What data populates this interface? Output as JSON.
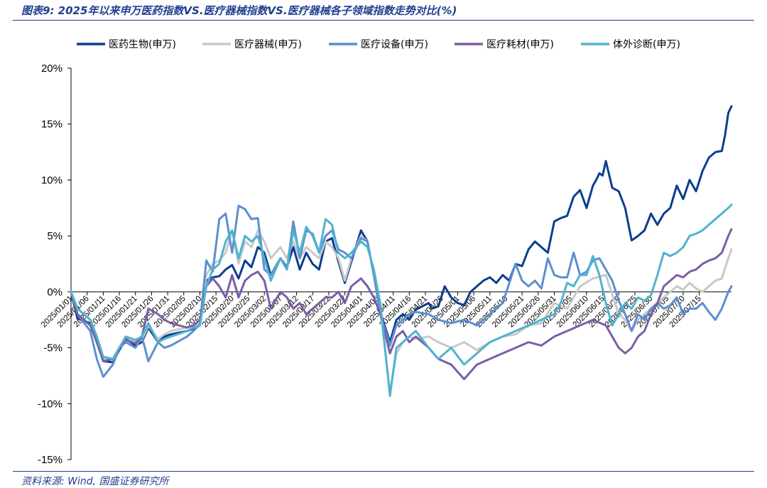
{
  "header": {
    "figure_title": "图表9: 2025年以来申万医药指数VS.医疗器械指数VS.医疗器械各子领域指数走势对比(%)"
  },
  "footer": {
    "source": "资料来源: Wind, 国盛证券研究所"
  },
  "chart_data": {
    "type": "line",
    "title": "",
    "xlabel": "",
    "ylabel": "",
    "ylim": [
      -15,
      20
    ],
    "y_ticks": [
      -15,
      -10,
      -5,
      0,
      5,
      10,
      15,
      20
    ],
    "y_tick_labels": [
      "-15%",
      "-10%",
      "-5%",
      "0%",
      "5%",
      "10%",
      "15%",
      "20%"
    ],
    "x_tick_labels": [
      "2025/01/01",
      "2025/01/06",
      "2025/01/11",
      "2025/01/16",
      "2025/01/21",
      "2025/01/26",
      "2025/01/31",
      "2025/02/05",
      "2025/02/10",
      "2025/02/15",
      "2025/02/20",
      "2025/02/25",
      "2025/03/02",
      "2025/03/07",
      "2025/03/12",
      "2025/03/17",
      "2025/03/22",
      "2025/03/27",
      "2025/04/01",
      "2025/04/06",
      "2025/04/11",
      "2025/04/16",
      "2025/04/21",
      "2025/04/26",
      "2025/05/01",
      "2025/05/06",
      "2025/05/11",
      "2025/05/16",
      "2025/05/21",
      "2025/05/26",
      "2025/05/31",
      "2025/06/05",
      "2025/06/10",
      "2025/06/15",
      "2025/06/20",
      "2025/06/25",
      "2025/06/30",
      "2025/07/05",
      "2025/07/10",
      "2025/07/15"
    ],
    "x_range": [
      0,
      205
    ],
    "legend_position": "top",
    "grid": false,
    "series": [
      {
        "name": "医药生物(申万)",
        "color": "#0e3d8f",
        "x": [
          0,
          2,
          6,
          8,
          10,
          13,
          15,
          17,
          20,
          22,
          24,
          27,
          29,
          31,
          36,
          38,
          40,
          42,
          44,
          46,
          48,
          50,
          52,
          54,
          56,
          58,
          60,
          62,
          65,
          67,
          69,
          71,
          73,
          75,
          77,
          79,
          81,
          83,
          85,
          87,
          90,
          92,
          94,
          96,
          99,
          101,
          103,
          105,
          107,
          111,
          112,
          114,
          116,
          118,
          120,
          122,
          124,
          126,
          128,
          130,
          132,
          134,
          136,
          138,
          140,
          142,
          144,
          146,
          148,
          150,
          152,
          154,
          156,
          158,
          160,
          162,
          163,
          164,
          165,
          166,
          168,
          170,
          172,
          174,
          176,
          178,
          180,
          182,
          184,
          186,
          188,
          190,
          192,
          194,
          196,
          198,
          200,
          202,
          203,
          204,
          205
        ],
        "y": [
          0,
          -2.4,
          -2.8,
          -4.5,
          -6.2,
          -6.3,
          -5.2,
          -4.2,
          -4.8,
          -4.5,
          -3.2,
          -4.5,
          -4.0,
          -3.8,
          -3.5,
          -3.3,
          -3.0,
          1.0,
          1.3,
          1.4,
          2.0,
          2.4,
          1.2,
          2.8,
          2.2,
          4.0,
          3.5,
          1.5,
          3.0,
          2.2,
          4.0,
          2.0,
          3.5,
          2.5,
          2.0,
          4.5,
          4.8,
          2.7,
          0.8,
          2.7,
          5.5,
          4.5,
          1.5,
          -1.8,
          -4.5,
          -2.5,
          -2.0,
          -2.5,
          -1.6,
          -1.0,
          -1.5,
          -1.3,
          0.5,
          -0.5,
          -1.0,
          -1.2,
          0.0,
          0.5,
          1.0,
          1.3,
          0.8,
          1.5,
          1.0,
          2.5,
          2.3,
          3.8,
          4.5,
          4.0,
          3.5,
          6.3,
          6.6,
          6.8,
          8.5,
          9.1,
          7.5,
          9.5,
          10.0,
          10.6,
          10.4,
          11.7,
          9.3,
          9.0,
          7.5,
          4.6,
          5.0,
          5.5,
          7.0,
          6.0,
          7.0,
          7.5,
          9.5,
          8.3,
          10.0,
          9.0,
          10.8,
          12.0,
          12.5,
          12.6,
          14.0,
          16.0,
          16.6
        ]
      },
      {
        "name": "医疗器械(申万)",
        "color": "#c8c8c8",
        "x": [
          0,
          2,
          6,
          8,
          10,
          13,
          15,
          17,
          20,
          22,
          24,
          27,
          29,
          31,
          36,
          38,
          40,
          42,
          44,
          46,
          48,
          50,
          52,
          54,
          56,
          58,
          60,
          62,
          65,
          67,
          69,
          71,
          73,
          75,
          77,
          79,
          81,
          83,
          85,
          87,
          90,
          92,
          94,
          96,
          99,
          101,
          103,
          105,
          107,
          111,
          114,
          118,
          122,
          126,
          130,
          134,
          138,
          142,
          146,
          150,
          154,
          158,
          162,
          166,
          170,
          172,
          174,
          176,
          178,
          180,
          182,
          184,
          186,
          188,
          190,
          192,
          194,
          196,
          198,
          200,
          202,
          204,
          205
        ],
        "y": [
          0,
          -1.5,
          -2.5,
          -4.0,
          -6.0,
          -6.0,
          -5.0,
          -4.0,
          -4.5,
          -4.3,
          -3.0,
          -4.2,
          -3.8,
          -3.5,
          -3.2,
          -3.0,
          -2.8,
          1.5,
          2.5,
          2.8,
          3.5,
          5.5,
          2.5,
          4.5,
          4.0,
          5.5,
          4.5,
          3.0,
          4.0,
          3.0,
          4.5,
          3.0,
          4.0,
          3.5,
          3.0,
          4.5,
          4.0,
          3.0,
          1.0,
          3.0,
          5.0,
          4.5,
          1.5,
          -1.5,
          -9.0,
          -5.5,
          -4.5,
          -4.0,
          -4.2,
          -4.0,
          -4.5,
          -5.0,
          -4.5,
          -5.2,
          -4.5,
          -4.0,
          -3.8,
          -3.0,
          -2.8,
          -1.0,
          -1.5,
          0.5,
          1.2,
          1.5,
          -2.0,
          -2.5,
          -3.5,
          -2.5,
          -2.0,
          -1.5,
          -1.0,
          -0.5,
          0.0,
          0.5,
          0.2,
          0.8,
          0.3,
          0.0,
          0.5,
          1.0,
          1.2,
          3.0,
          3.8
        ]
      },
      {
        "name": "医疗设备(申万)",
        "color": "#5b8fd1",
        "x": [
          0,
          2,
          6,
          8,
          10,
          13,
          15,
          17,
          20,
          22,
          24,
          27,
          29,
          31,
          36,
          38,
          40,
          42,
          44,
          46,
          48,
          50,
          52,
          54,
          56,
          58,
          60,
          62,
          65,
          67,
          69,
          71,
          73,
          75,
          77,
          79,
          81,
          83,
          85,
          87,
          90,
          92,
          94,
          96,
          99,
          101,
          103,
          105,
          107,
          111,
          114,
          118,
          122,
          126,
          130,
          134,
          138,
          140,
          142,
          144,
          146,
          148,
          150,
          152,
          154,
          156,
          158,
          160,
          162,
          164,
          166,
          168,
          170,
          172,
          174,
          176,
          178,
          180,
          182,
          184,
          186,
          188,
          190,
          192,
          194,
          196,
          198,
          200,
          202,
          204,
          205
        ],
        "y": [
          0,
          -2.0,
          -3.5,
          -6.0,
          -7.6,
          -6.5,
          -5.0,
          -4.5,
          -5.0,
          -4.0,
          -6.2,
          -4.5,
          -5.0,
          -4.8,
          -4.0,
          -3.5,
          -2.9,
          2.8,
          1.8,
          6.5,
          7.0,
          3.5,
          7.7,
          7.4,
          6.5,
          6.6,
          2.0,
          1.5,
          3.0,
          2.0,
          6.3,
          3.0,
          5.5,
          5.2,
          3.5,
          5.0,
          5.5,
          3.8,
          3.5,
          3.0,
          4.8,
          4.5,
          1.5,
          -2.0,
          -4.8,
          -3.0,
          -2.5,
          -2.0,
          -1.8,
          -2.0,
          -2.5,
          -2.8,
          -2.5,
          -3.0,
          -2.0,
          -1.0,
          2.5,
          1.0,
          0.5,
          1.0,
          0.3,
          3.0,
          1.5,
          1.3,
          1.3,
          3.5,
          1.5,
          1.8,
          2.8,
          3.0,
          2.0,
          1.0,
          -0.8,
          -2.0,
          -3.5,
          -2.0,
          -2.5,
          -1.5,
          -1.0,
          -1.5,
          -1.2,
          -0.5,
          -2.0,
          -1.5,
          -1.5,
          -1.0,
          -1.8,
          -2.5,
          -1.5,
          0.0,
          0.5
        ]
      },
      {
        "name": "医疗耗材(申万)",
        "color": "#7b5ea7",
        "x": [
          0,
          2,
          6,
          8,
          10,
          13,
          15,
          17,
          20,
          22,
          24,
          27,
          29,
          31,
          36,
          38,
          40,
          42,
          44,
          46,
          48,
          50,
          52,
          54,
          56,
          58,
          60,
          62,
          65,
          67,
          69,
          71,
          73,
          75,
          77,
          79,
          81,
          83,
          85,
          87,
          90,
          92,
          94,
          96,
          99,
          101,
          103,
          105,
          107,
          111,
          114,
          118,
          122,
          126,
          130,
          134,
          138,
          142,
          146,
          150,
          154,
          158,
          162,
          166,
          170,
          172,
          174,
          176,
          178,
          180,
          182,
          184,
          186,
          188,
          190,
          192,
          194,
          196,
          198,
          200,
          202,
          204,
          205
        ],
        "y": [
          0,
          -2.0,
          -3.0,
          -4.5,
          -6.2,
          -6.0,
          -5.0,
          -4.3,
          -4.6,
          -4.0,
          -1.5,
          -2.0,
          -2.5,
          -2.8,
          -3.2,
          -3.0,
          -2.5,
          0.5,
          1.2,
          0.5,
          -0.5,
          1.5,
          -0.5,
          1.0,
          1.5,
          1.8,
          1.0,
          -1.5,
          0.0,
          -0.5,
          -1.5,
          -1.0,
          -2.0,
          -1.5,
          -1.0,
          -0.5,
          -0.5,
          0.0,
          -1.0,
          0.5,
          1.2,
          0.5,
          -0.5,
          -2.0,
          -5.5,
          -4.0,
          -3.5,
          -4.5,
          -4.0,
          -5.0,
          -6.0,
          -6.5,
          -7.8,
          -6.5,
          -6.0,
          -5.5,
          -5.0,
          -4.5,
          -4.8,
          -4.0,
          -3.5,
          -3.0,
          -2.5,
          -3.0,
          -5.0,
          -5.5,
          -5.0,
          -4.0,
          -3.5,
          -2.0,
          -1.0,
          0.5,
          1.0,
          1.5,
          1.3,
          1.8,
          2.0,
          2.5,
          2.8,
          3.0,
          3.5,
          5.0,
          5.6
        ]
      },
      {
        "name": "体外诊断(申万)",
        "color": "#4fb3cf",
        "x": [
          0,
          2,
          6,
          8,
          10,
          13,
          15,
          17,
          20,
          22,
          24,
          27,
          29,
          31,
          36,
          38,
          40,
          42,
          44,
          46,
          48,
          50,
          52,
          54,
          56,
          58,
          60,
          62,
          65,
          67,
          69,
          71,
          73,
          75,
          77,
          79,
          81,
          83,
          85,
          87,
          90,
          92,
          94,
          96,
          99,
          101,
          103,
          105,
          107,
          111,
          114,
          118,
          122,
          126,
          130,
          134,
          138,
          142,
          146,
          150,
          152,
          154,
          156,
          158,
          160,
          162,
          164,
          166,
          168,
          170,
          172,
          174,
          176,
          178,
          180,
          182,
          184,
          186,
          188,
          190,
          192,
          194,
          196,
          198,
          200,
          202,
          204,
          205
        ],
        "y": [
          0,
          -1.5,
          -2.5,
          -4.0,
          -5.8,
          -6.0,
          -5.0,
          -4.0,
          -4.3,
          -4.0,
          -2.8,
          -4.5,
          -4.2,
          -4.0,
          -3.5,
          -3.2,
          -3.0,
          0.5,
          2.0,
          2.5,
          4.5,
          5.5,
          3.0,
          5.0,
          4.5,
          5.0,
          3.0,
          1.0,
          3.0,
          2.0,
          5.5,
          3.5,
          5.8,
          5.0,
          3.5,
          6.5,
          6.0,
          3.5,
          3.0,
          3.5,
          4.5,
          4.0,
          2.0,
          -1.0,
          -9.3,
          -5.0,
          -4.5,
          -4.0,
          -3.5,
          -5.0,
          -6.0,
          -5.0,
          -6.5,
          -5.5,
          -4.5,
          -4.0,
          -3.5,
          -3.0,
          -2.5,
          -2.0,
          -1.0,
          0.8,
          0.5,
          1.5,
          1.5,
          3.2,
          1.5,
          -1.0,
          -3.0,
          -2.0,
          -1.0,
          -1.5,
          -0.5,
          -0.8,
          -0.3,
          1.5,
          3.5,
          3.2,
          3.5,
          4.0,
          5.0,
          5.2,
          5.5,
          6.0,
          6.5,
          7.0,
          7.5,
          7.8
        ]
      }
    ]
  }
}
